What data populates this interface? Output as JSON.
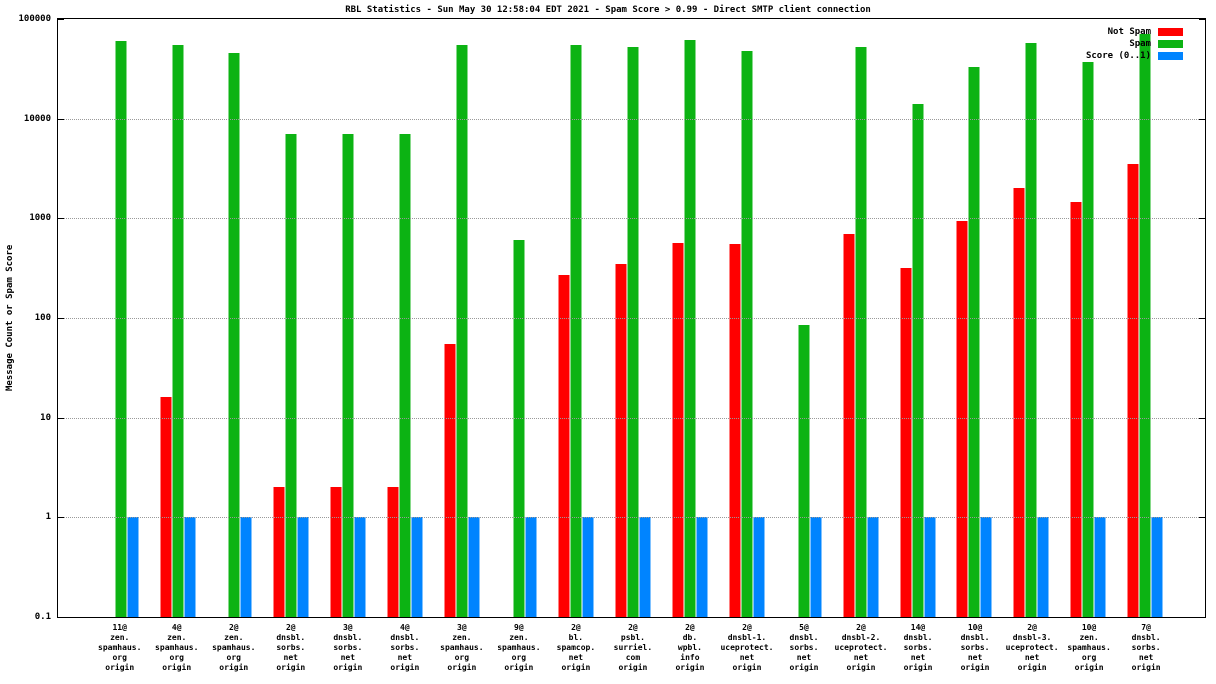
{
  "chart_data": {
    "type": "bar",
    "title": "RBL Statistics - Sun May 30 12:58:04 EDT 2021 - Spam Score > 0.99 - Direct SMTP client connection",
    "ylabel": "Message Count or Spam Score",
    "xlabel": "",
    "yscale": "log",
    "ylim": [
      0.1,
      100000
    ],
    "yticks": [
      {
        "label": "100000",
        "value": 100000
      },
      {
        "label": "10000",
        "value": 10000
      },
      {
        "label": "1000",
        "value": 1000
      },
      {
        "label": "100",
        "value": 100
      },
      {
        "label": "10",
        "value": 10
      },
      {
        "label": "1",
        "value": 1
      },
      {
        "label": "0.1",
        "value": 0.1
      }
    ],
    "grid": "horizontal-dotted",
    "legend_position": "top-right",
    "categories": [
      [
        "11@",
        "zen.",
        "spamhaus.",
        "org",
        "origin"
      ],
      [
        "4@",
        "zen.",
        "spamhaus.",
        "org",
        "origin"
      ],
      [
        "2@",
        "zen.",
        "spamhaus.",
        "org",
        "origin"
      ],
      [
        "2@",
        "dnsbl.",
        "sorbs.",
        "net",
        "origin"
      ],
      [
        "3@",
        "dnsbl.",
        "sorbs.",
        "net",
        "origin"
      ],
      [
        "4@",
        "dnsbl.",
        "sorbs.",
        "net",
        "origin"
      ],
      [
        "3@",
        "zen.",
        "spamhaus.",
        "org",
        "origin"
      ],
      [
        "9@",
        "zen.",
        "spamhaus.",
        "org",
        "origin"
      ],
      [
        "2@",
        "bl.",
        "spamcop.",
        "net",
        "origin"
      ],
      [
        "2@",
        "psbl.",
        "surriel.",
        "com",
        "origin"
      ],
      [
        "2@",
        "db.",
        "wpbl.",
        "info",
        "origin"
      ],
      [
        "2@",
        "dnsbl-1.",
        "uceprotect.",
        "net",
        "origin"
      ],
      [
        "5@",
        "dnsbl.",
        "sorbs.",
        "net",
        "origin"
      ],
      [
        "2@",
        "dnsbl-2.",
        "uceprotect.",
        "net",
        "origin"
      ],
      [
        "14@",
        "dnsbl.",
        "sorbs.",
        "net",
        "origin"
      ],
      [
        "10@",
        "dnsbl.",
        "sorbs.",
        "net",
        "origin"
      ],
      [
        "2@",
        "dnsbl-3.",
        "uceprotect.",
        "net",
        "origin"
      ],
      [
        "10@",
        "zen.",
        "spamhaus.",
        "org",
        "origin"
      ],
      [
        "7@",
        "dnsbl.",
        "sorbs.",
        "net",
        "origin"
      ]
    ],
    "series": [
      {
        "name": "Not Spam",
        "color": "#ff0000",
        "values": [
          null,
          16,
          null,
          2,
          2,
          2,
          55,
          null,
          270,
          350,
          560,
          550,
          null,
          700,
          320,
          950,
          2000,
          1450,
          3500
        ]
      },
      {
        "name": "Spam",
        "color": "#0cb313",
        "values": [
          60000,
          55000,
          46000,
          7000,
          7000,
          7000,
          55000,
          600,
          55000,
          52000,
          62000,
          48000,
          85,
          52000,
          14000,
          33000,
          57000,
          37000,
          70000
        ]
      },
      {
        "name": "Score (0..1)",
        "color": "#0084ff",
        "values": [
          1,
          1,
          1,
          1,
          1,
          1,
          1,
          1,
          1,
          1,
          1,
          1,
          1,
          1,
          1,
          1,
          1,
          1,
          1
        ]
      }
    ]
  }
}
